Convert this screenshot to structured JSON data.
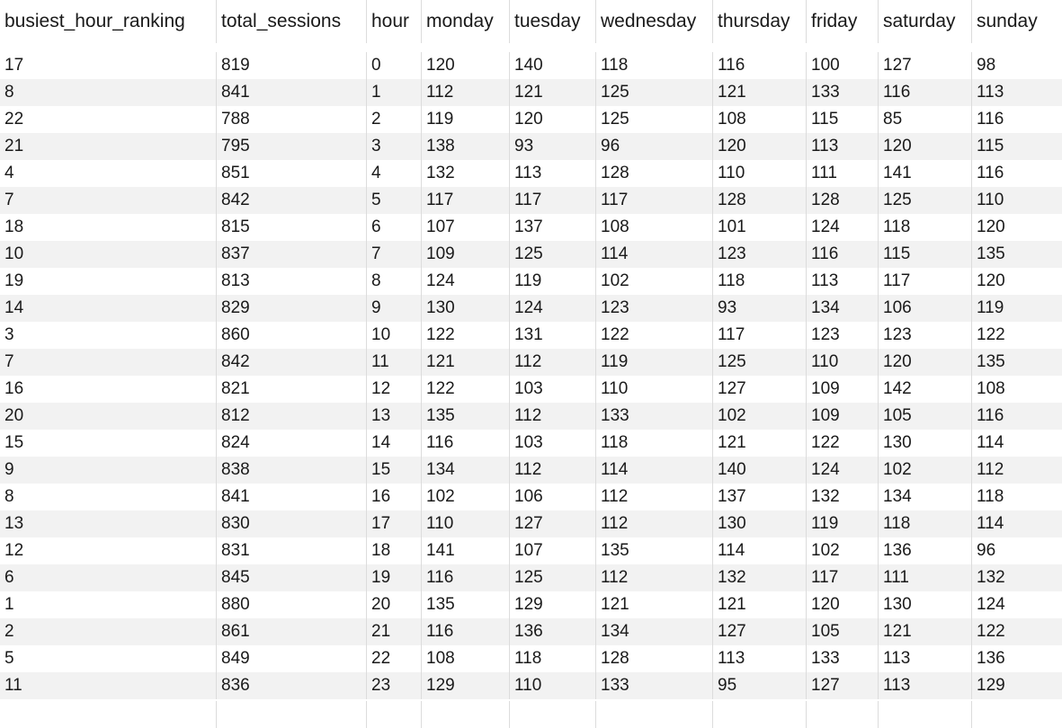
{
  "table": {
    "columns": [
      "busiest_hour_ranking",
      "total_sessions",
      "hour",
      "monday",
      "tuesday",
      "wednesday",
      "thursday",
      "friday",
      "saturday",
      "sunday"
    ],
    "rows": [
      [
        "17",
        "819",
        "0",
        "120",
        "140",
        "118",
        "116",
        "100",
        "127",
        "98"
      ],
      [
        "8",
        "841",
        "1",
        "112",
        "121",
        "125",
        "121",
        "133",
        "116",
        "113"
      ],
      [
        "22",
        "788",
        "2",
        "119",
        "120",
        "125",
        "108",
        "115",
        "85",
        "116"
      ],
      [
        "21",
        "795",
        "3",
        "138",
        "93",
        "96",
        "120",
        "113",
        "120",
        "115"
      ],
      [
        "4",
        "851",
        "4",
        "132",
        "113",
        "128",
        "110",
        "111",
        "141",
        "116"
      ],
      [
        "7",
        "842",
        "5",
        "117",
        "117",
        "117",
        "128",
        "128",
        "125",
        "110"
      ],
      [
        "18",
        "815",
        "6",
        "107",
        "137",
        "108",
        "101",
        "124",
        "118",
        "120"
      ],
      [
        "10",
        "837",
        "7",
        "109",
        "125",
        "114",
        "123",
        "116",
        "115",
        "135"
      ],
      [
        "19",
        "813",
        "8",
        "124",
        "119",
        "102",
        "118",
        "113",
        "117",
        "120"
      ],
      [
        "14",
        "829",
        "9",
        "130",
        "124",
        "123",
        "93",
        "134",
        "106",
        "119"
      ],
      [
        "3",
        "860",
        "10",
        "122",
        "131",
        "122",
        "117",
        "123",
        "123",
        "122"
      ],
      [
        "7",
        "842",
        "11",
        "121",
        "112",
        "119",
        "125",
        "110",
        "120",
        "135"
      ],
      [
        "16",
        "821",
        "12",
        "122",
        "103",
        "110",
        "127",
        "109",
        "142",
        "108"
      ],
      [
        "20",
        "812",
        "13",
        "135",
        "112",
        "133",
        "102",
        "109",
        "105",
        "116"
      ],
      [
        "15",
        "824",
        "14",
        "116",
        "103",
        "118",
        "121",
        "122",
        "130",
        "114"
      ],
      [
        "9",
        "838",
        "15",
        "134",
        "112",
        "114",
        "140",
        "124",
        "102",
        "112"
      ],
      [
        "8",
        "841",
        "16",
        "102",
        "106",
        "112",
        "137",
        "132",
        "134",
        "118"
      ],
      [
        "13",
        "830",
        "17",
        "110",
        "127",
        "112",
        "130",
        "119",
        "118",
        "114"
      ],
      [
        "12",
        "831",
        "18",
        "141",
        "107",
        "135",
        "114",
        "102",
        "136",
        "96"
      ],
      [
        "6",
        "845",
        "19",
        "116",
        "125",
        "112",
        "132",
        "117",
        "111",
        "132"
      ],
      [
        "1",
        "880",
        "20",
        "135",
        "129",
        "121",
        "121",
        "120",
        "130",
        "124"
      ],
      [
        "2",
        "861",
        "21",
        "116",
        "136",
        "134",
        "127",
        "105",
        "121",
        "122"
      ],
      [
        "5",
        "849",
        "22",
        "108",
        "118",
        "128",
        "113",
        "133",
        "113",
        "136"
      ],
      [
        "11",
        "836",
        "23",
        "129",
        "110",
        "133",
        "95",
        "127",
        "113",
        "129"
      ]
    ]
  }
}
